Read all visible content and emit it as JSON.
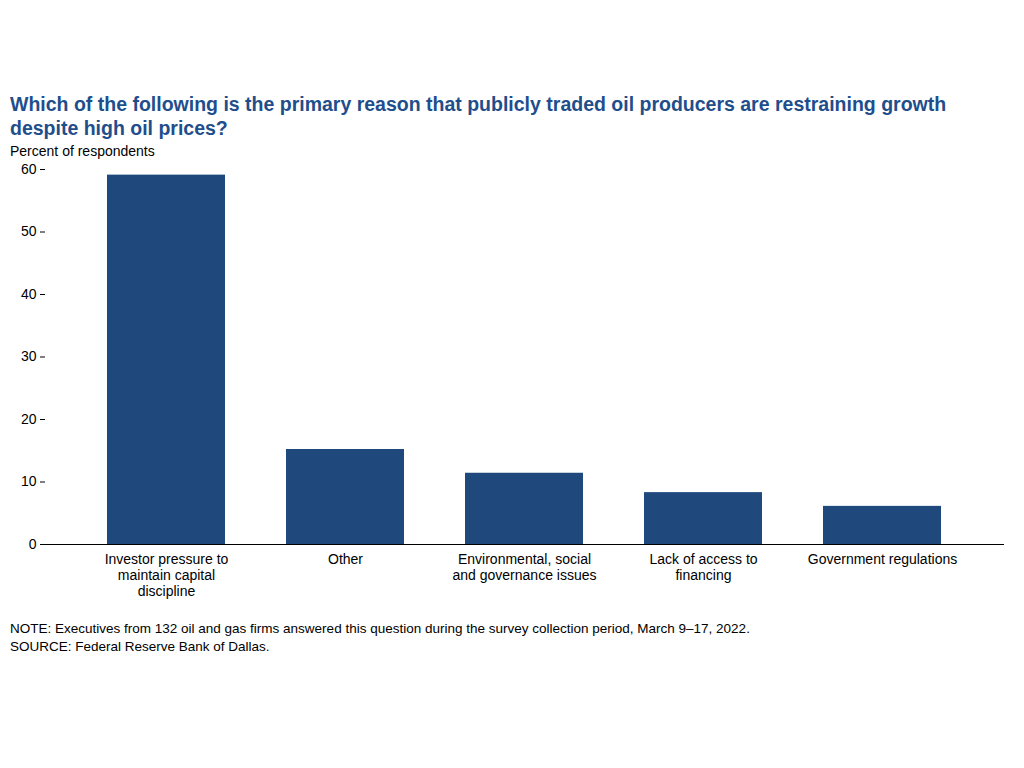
{
  "chart_data": {
    "type": "bar",
    "title": "Which of the following is the primary reason that publicly traded oil producers are restraining growth despite high oil prices?",
    "ylabel": "Percent of respondents",
    "categories": [
      "Investor pressure to maintain capital discipline",
      "Other",
      "Environmental, social and governance issues",
      "Lack of access to financing",
      "Government regulations"
    ],
    "values": [
      59.1,
      15.2,
      11.4,
      8.3,
      6.1
    ],
    "color": "#1f497d",
    "ylim": [
      0,
      60
    ],
    "yticks": [
      0,
      10,
      20,
      30,
      40,
      50,
      60
    ],
    "grid": false,
    "note": "NOTE: Executives from 132 oil and gas firms answered this question during the survey collection period, March 9–17, 2022.",
    "source": "SOURCE: Federal Reserve Bank of Dallas."
  }
}
